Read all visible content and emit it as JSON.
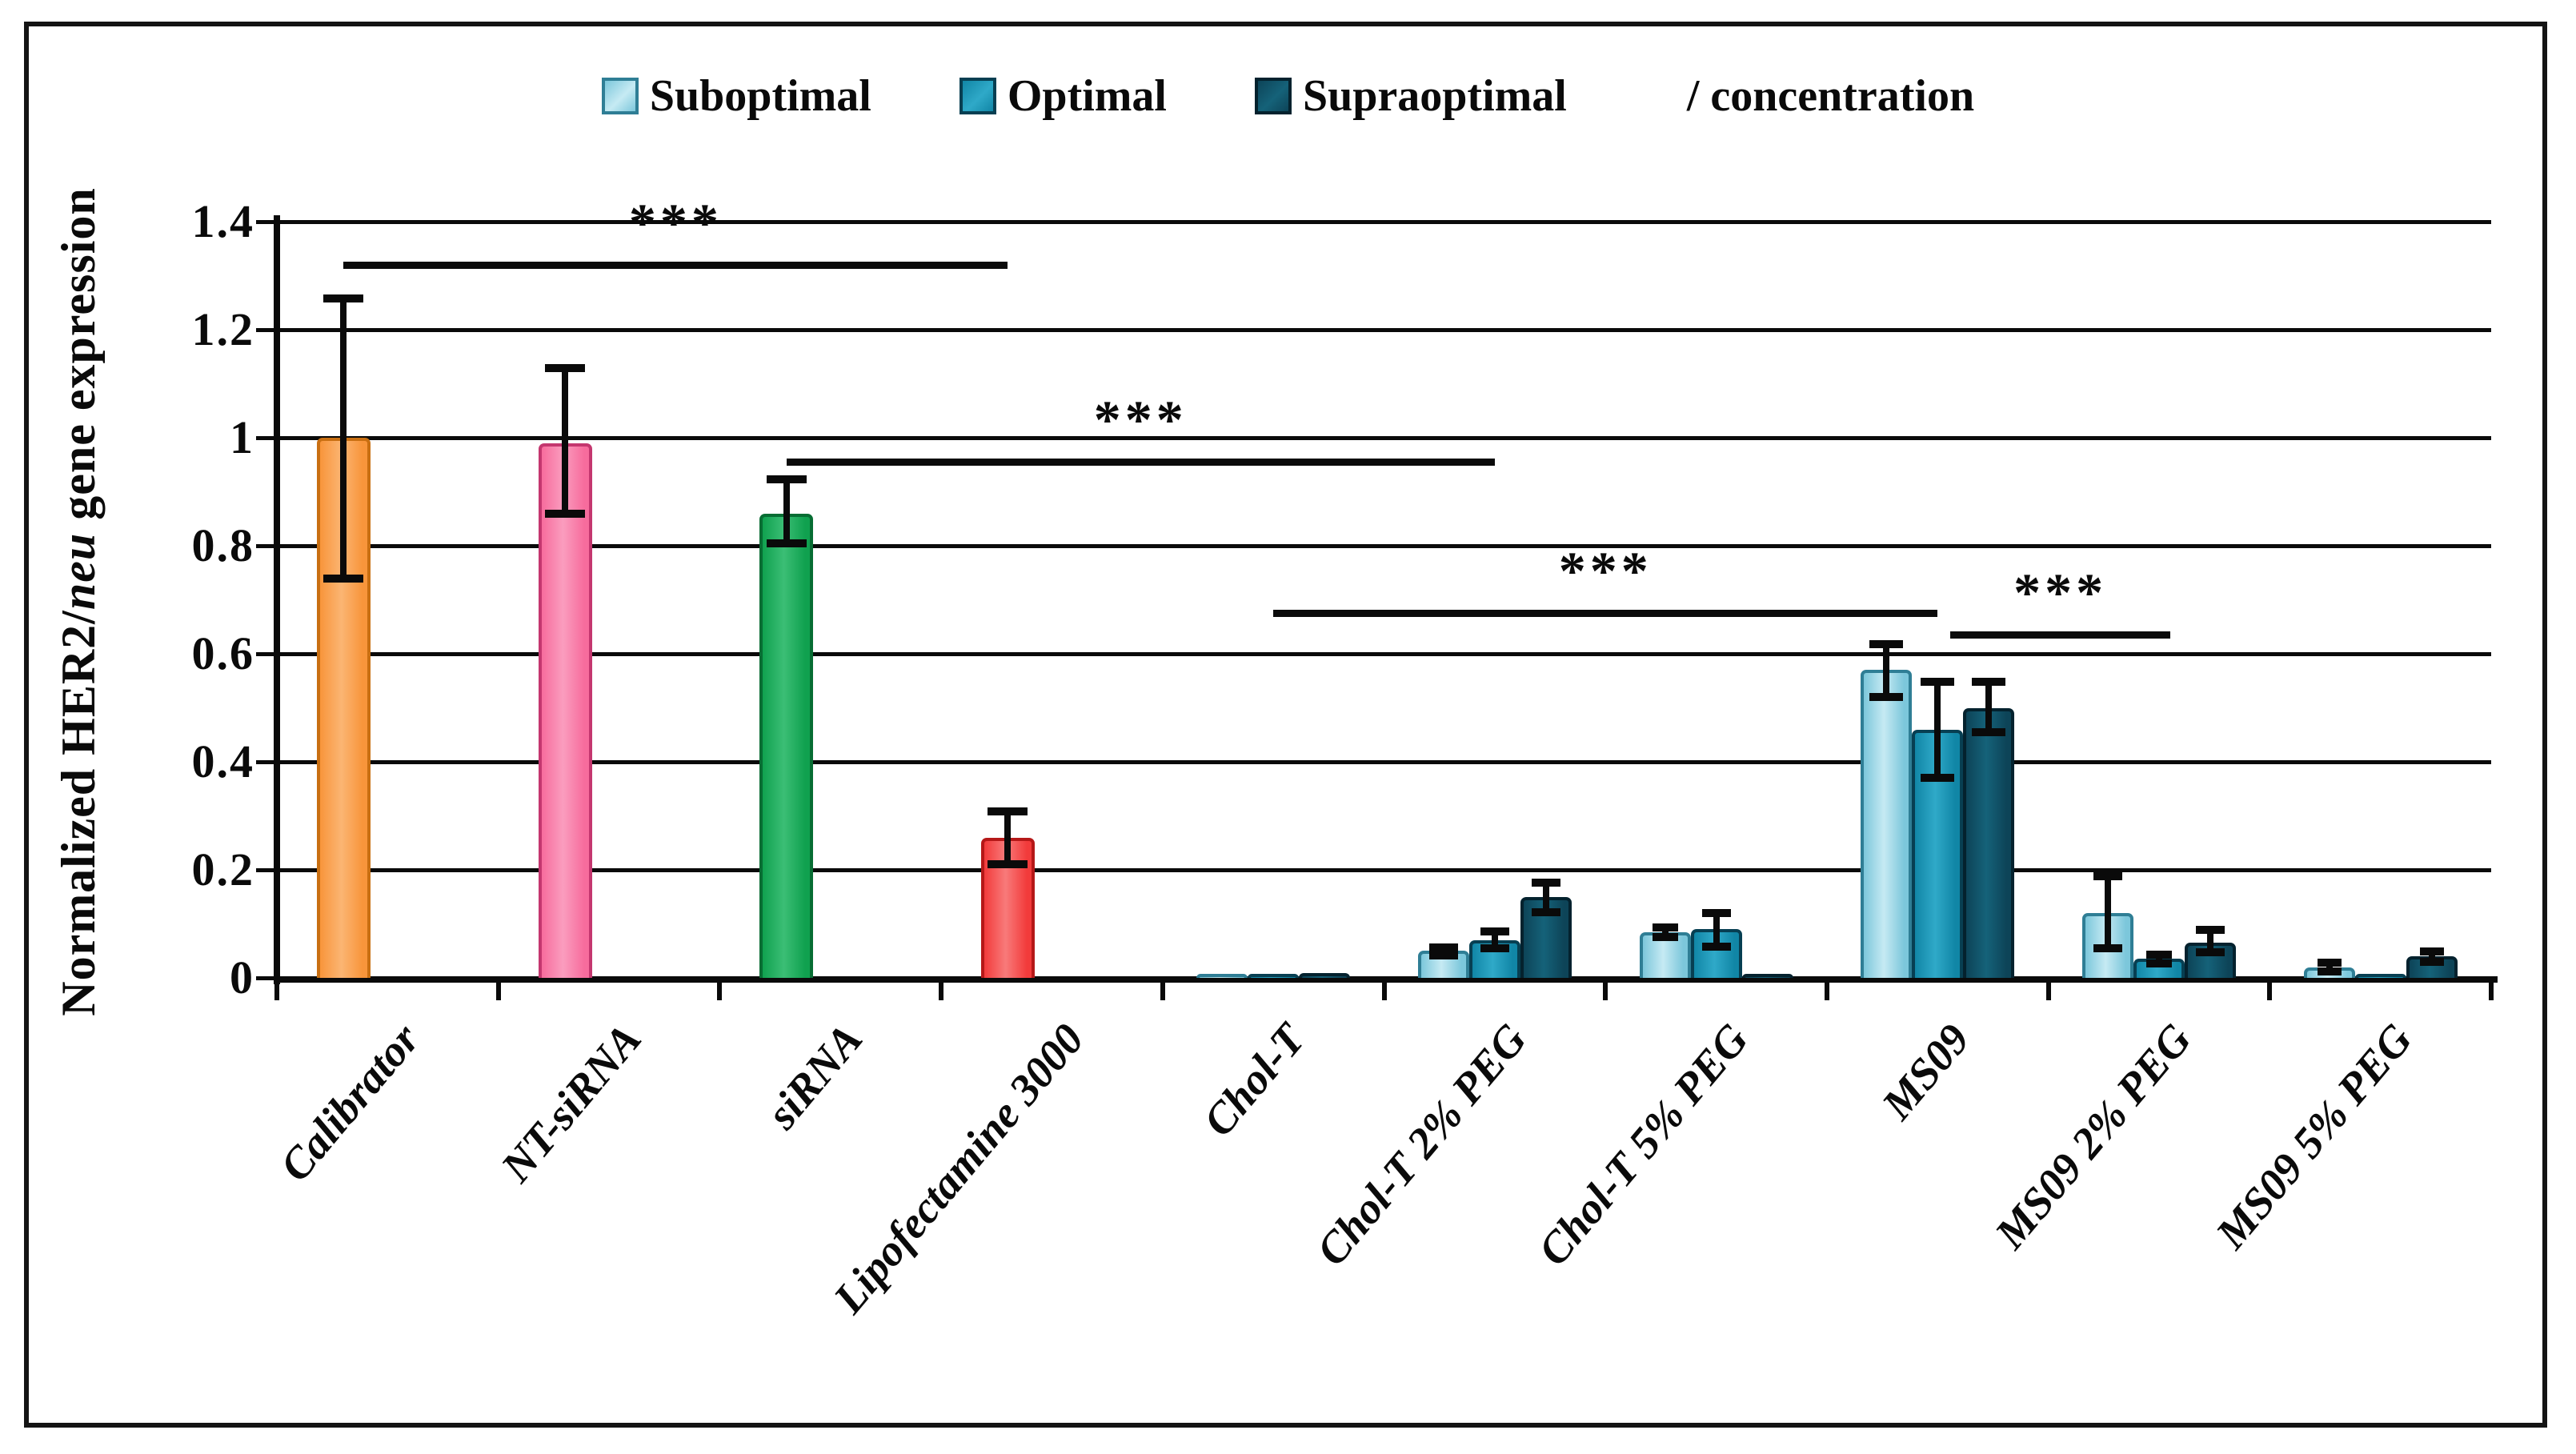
{
  "page": {
    "background": "#ffffff",
    "frame_border_color": "#141414"
  },
  "chart_data": {
    "type": "bar",
    "title": "",
    "ylabel": "Normalized HER2/neu gene expression",
    "ylabel_parts": {
      "pre": "Normalized HER2/",
      "italic": "neu",
      "post": " gene expression"
    },
    "ylim": [
      0,
      1.4
    ],
    "grid": true,
    "legend_position": "top",
    "ytick_values": [
      0,
      0.2,
      0.4,
      0.6,
      0.8,
      1.0,
      1.2,
      1.4
    ],
    "ytick_labels": [
      "0",
      "0.2",
      "0.4",
      "0.6",
      "0.8",
      "1",
      "1.2",
      "1.4"
    ],
    "legend": {
      "items": [
        {
          "label": "Suboptimal",
          "key": "suboptimal"
        },
        {
          "label": "Optimal",
          "key": "optimal"
        },
        {
          "label": "Supraoptimal",
          "key": "supraoptimal"
        }
      ],
      "suffix": "/ concentration"
    },
    "palette": {
      "suboptimal": {
        "fill": "#7CC7DB",
        "light": "#C6EAF3",
        "border": "#2F7E95"
      },
      "optimal": {
        "fill": "#1186A6",
        "light": "#2FA9C8",
        "border": "#073F52"
      },
      "supraoptimal": {
        "fill": "#0D4458",
        "light": "#156279",
        "border": "#04222E"
      },
      "calibrator": {
        "fill": "#F8953B",
        "light": "#FBB573",
        "border": "#C96F12"
      },
      "nt_sirna": {
        "fill": "#F76C9D",
        "light": "#FA9DBE",
        "border": "#C4376F"
      },
      "sirna": {
        "fill": "#10A14F",
        "light": "#3BBE75",
        "border": "#076D33"
      },
      "lipofectamine": {
        "fill": "#F23B3B",
        "light": "#F87A7A",
        "border": "#B51818"
      }
    },
    "groups": [
      {
        "label": "Calibrator",
        "single": true,
        "bars": [
          {
            "series": "Calibrator",
            "color": "calibrator",
            "value": 1.0,
            "err_lo": 0.74,
            "err_hi": 1.26,
            "cap": 50
          }
        ]
      },
      {
        "label": "NT-siRNA",
        "single": true,
        "bars": [
          {
            "series": "NT-siRNA",
            "color": "nt_sirna",
            "value": 0.99,
            "err_lo": 0.86,
            "err_hi": 1.13,
            "cap": 50
          }
        ]
      },
      {
        "label": "siRNA",
        "single": true,
        "bars": [
          {
            "series": "siRNA",
            "color": "sirna",
            "value": 0.86,
            "err_lo": 0.805,
            "err_hi": 0.925,
            "cap": 50
          }
        ]
      },
      {
        "label": "Lipofectamine 3000",
        "single": true,
        "bars": [
          {
            "series": "Lipofectamine 3000",
            "color": "lipofectamine",
            "value": 0.26,
            "err_lo": 0.21,
            "err_hi": 0.31,
            "cap": 50
          }
        ]
      },
      {
        "label": "Chol-T",
        "bars": [
          {
            "series": "Suboptimal",
            "color": "suboptimal",
            "value": 0.005
          },
          {
            "series": "Optimal",
            "color": "optimal",
            "value": 0.007
          },
          {
            "series": "Supraoptimal",
            "color": "supraoptimal",
            "value": 0.009
          }
        ]
      },
      {
        "label": "Chol-T 2% PEG",
        "bars": [
          {
            "series": "Suboptimal",
            "color": "suboptimal",
            "value": 0.05,
            "err_lo": 0.042,
            "err_hi": 0.058,
            "cap": 36
          },
          {
            "series": "Optimal",
            "color": "optimal",
            "value": 0.07,
            "err_lo": 0.055,
            "err_hi": 0.088,
            "cap": 36
          },
          {
            "series": "Supraoptimal",
            "color": "supraoptimal",
            "value": 0.15,
            "err_lo": 0.122,
            "err_hi": 0.178,
            "cap": 36
          }
        ]
      },
      {
        "label": "Chol-T 5% PEG",
        "bars": [
          {
            "series": "Suboptimal",
            "color": "suboptimal",
            "value": 0.085,
            "err_lo": 0.075,
            "err_hi": 0.095,
            "cap": 32
          },
          {
            "series": "Optimal",
            "color": "optimal",
            "value": 0.09,
            "err_lo": 0.058,
            "err_hi": 0.122,
            "cap": 36
          },
          {
            "series": "Supraoptimal",
            "color": "supraoptimal",
            "value": 0.006
          }
        ]
      },
      {
        "label": "MS09",
        "bars": [
          {
            "series": "Suboptimal",
            "color": "suboptimal",
            "value": 0.57,
            "err_lo": 0.52,
            "err_hi": 0.62,
            "cap": 42
          },
          {
            "series": "Optimal",
            "color": "optimal",
            "value": 0.46,
            "err_lo": 0.37,
            "err_hi": 0.55,
            "cap": 42
          },
          {
            "series": "Supraoptimal",
            "color": "supraoptimal",
            "value": 0.5,
            "err_lo": 0.455,
            "err_hi": 0.55,
            "cap": 42
          }
        ]
      },
      {
        "label": "MS09 2% PEG",
        "bars": [
          {
            "series": "Suboptimal",
            "color": "suboptimal",
            "value": 0.12,
            "err_lo": 0.055,
            "err_hi": 0.19,
            "cap": 36
          },
          {
            "series": "Optimal",
            "color": "optimal",
            "value": 0.035,
            "err_lo": 0.027,
            "err_hi": 0.045,
            "cap": 32
          },
          {
            "series": "Supraoptimal",
            "color": "supraoptimal",
            "value": 0.065,
            "err_lo": 0.048,
            "err_hi": 0.09,
            "cap": 36
          }
        ]
      },
      {
        "label": "MS09 5% PEG",
        "bars": [
          {
            "series": "Suboptimal",
            "color": "suboptimal",
            "value": 0.02,
            "err_lo": 0.012,
            "err_hi": 0.03,
            "cap": 30
          },
          {
            "series": "Optimal",
            "color": "optimal",
            "value": 0.005
          },
          {
            "series": "Supraoptimal",
            "color": "supraoptimal",
            "value": 0.04,
            "err_lo": 0.03,
            "err_hi": 0.05,
            "cap": 30
          }
        ]
      }
    ],
    "significance": [
      {
        "label": "***",
        "from_group": 0,
        "to_group": 3,
        "y": 1.32
      },
      {
        "label": "***",
        "from_group": 2,
        "to_group": 5,
        "y": 0.955
      },
      {
        "label": "***",
        "from_group": 4,
        "to_group": 7,
        "y": 0.675
      },
      {
        "label": "***",
        "from_group": 7,
        "to_group": 8,
        "y": 0.635,
        "pad_start": 16,
        "pad_end": 14
      }
    ]
  }
}
